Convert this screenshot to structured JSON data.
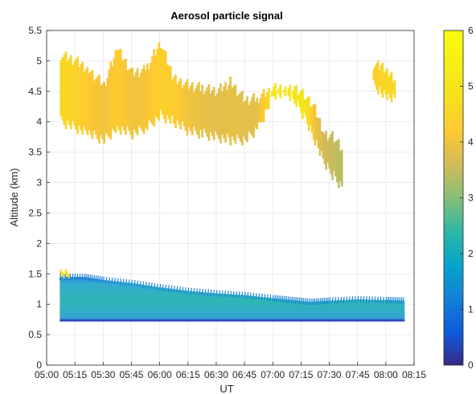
{
  "chart_data": {
    "type": "heatmap",
    "title": "Aerosol particle signal",
    "xlabel": "UT",
    "ylabel": "Altitude (km)",
    "x_ticks": [
      "05:00",
      "05:15",
      "05:30",
      "05:45",
      "06:00",
      "06:15",
      "06:30",
      "06:45",
      "07:00",
      "07:15",
      "07:30",
      "07:45",
      "08:00",
      "08:15"
    ],
    "y_ticks": [
      "0",
      "0.5",
      "1",
      "1.5",
      "2",
      "2.5",
      "3",
      "3.5",
      "4",
      "4.5",
      "5",
      "5.5"
    ],
    "xlim": [
      "05:00",
      "08:15"
    ],
    "ylim": [
      0,
      5.5
    ],
    "grid": true,
    "colorbar": {
      "ticks": [
        "0",
        "1",
        "2",
        "3",
        "4",
        "5",
        "6"
      ],
      "range": [
        0,
        6
      ],
      "colormap": "parula"
    },
    "upper_layer": {
      "time": [
        "05:07",
        "05:15",
        "05:22",
        "05:30",
        "05:37",
        "05:45",
        "05:52",
        "06:00",
        "06:07",
        "06:15",
        "06:22",
        "06:30",
        "06:37",
        "06:45",
        "06:52",
        "07:00",
        "07:07",
        "07:12",
        "07:17",
        "07:22",
        "07:27",
        "07:32",
        "07:37"
      ],
      "top_km": [
        5.1,
        5.0,
        4.85,
        4.6,
        5.2,
        4.8,
        4.85,
        5.3,
        4.7,
        4.6,
        4.55,
        4.5,
        4.65,
        4.35,
        4.4,
        4.55,
        4.55,
        4.55,
        4.4,
        4.2,
        3.8,
        3.75,
        3.5
      ],
      "bottom_km": [
        4.0,
        3.9,
        3.8,
        3.7,
        3.9,
        3.8,
        3.9,
        4.1,
        4.0,
        3.85,
        3.8,
        3.75,
        3.7,
        3.7,
        3.9,
        4.45,
        4.45,
        4.3,
        4.05,
        3.7,
        3.3,
        3.1,
        2.9
      ],
      "value": [
        4.6,
        4.5,
        4.2,
        4.0,
        4.3,
        4.0,
        4.1,
        4.4,
        4.3,
        4.0,
        3.9,
        3.8,
        3.9,
        3.8,
        3.9,
        5.0,
        5.0,
        5.0,
        4.9,
        4.0,
        3.6,
        3.5,
        3.4
      ]
    },
    "upper_patch": {
      "time": [
        "07:53",
        "07:57",
        "08:01",
        "08:05"
      ],
      "top_km": [
        4.95,
        4.9,
        4.8,
        4.7
      ],
      "bottom_km": [
        4.6,
        4.5,
        4.4,
        4.35
      ],
      "value": [
        4.4,
        4.5,
        4.6,
        4.5
      ]
    },
    "lower_layer": {
      "time": [
        "05:07",
        "05:20",
        "05:30",
        "05:45",
        "06:00",
        "06:15",
        "06:30",
        "06:45",
        "07:00",
        "07:10",
        "07:20",
        "07:30",
        "07:45",
        "08:00",
        "08:10"
      ],
      "top_km": [
        1.45,
        1.45,
        1.4,
        1.35,
        1.28,
        1.22,
        1.18,
        1.15,
        1.1,
        1.07,
        1.04,
        1.06,
        1.08,
        1.07,
        1.06
      ],
      "bottom_km": 0.73,
      "value": 2.0
    }
  }
}
